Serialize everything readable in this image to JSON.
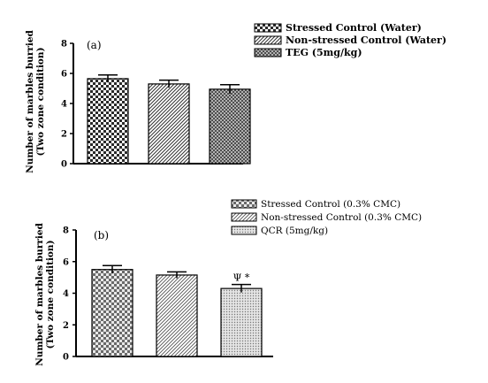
{
  "chart_data": [
    {
      "type": "bar",
      "panel_label": "(a)",
      "ylabel": "Number of marbles burried (Two zone condition)",
      "ylim": [
        0,
        8
      ],
      "yticks": [
        0,
        2,
        4,
        6,
        8
      ],
      "series": [
        {
          "name": "Stressed Control (Water)",
          "value": 5.65,
          "error": 0.25,
          "pattern": "checker"
        },
        {
          "name": "Non-stressed Control (Water)",
          "value": 5.3,
          "error": 0.25,
          "pattern": "diagonal"
        },
        {
          "name": "TEG (5mg/kg)",
          "value": 4.95,
          "error": 0.3,
          "pattern": "crosshatch"
        }
      ],
      "annotations": []
    },
    {
      "type": "bar",
      "panel_label": "(b)",
      "ylabel": "Number of marbles burried (Two zone condition)",
      "ylim": [
        0,
        8
      ],
      "yticks": [
        0,
        2,
        4,
        6,
        8
      ],
      "series": [
        {
          "name": "Stressed Control (0.3% CMC)",
          "value": 5.5,
          "error": 0.25,
          "pattern": "checker"
        },
        {
          "name": "Non-stressed Control (0.3% CMC)",
          "value": 5.15,
          "error": 0.2,
          "pattern": "diagonal"
        },
        {
          "name": "QCR (5mg/kg)",
          "value": 4.3,
          "error": 0.25,
          "pattern": "crosshatch"
        }
      ],
      "annotations": [
        {
          "bar": 2,
          "text": "Ψ *"
        }
      ]
    }
  ]
}
